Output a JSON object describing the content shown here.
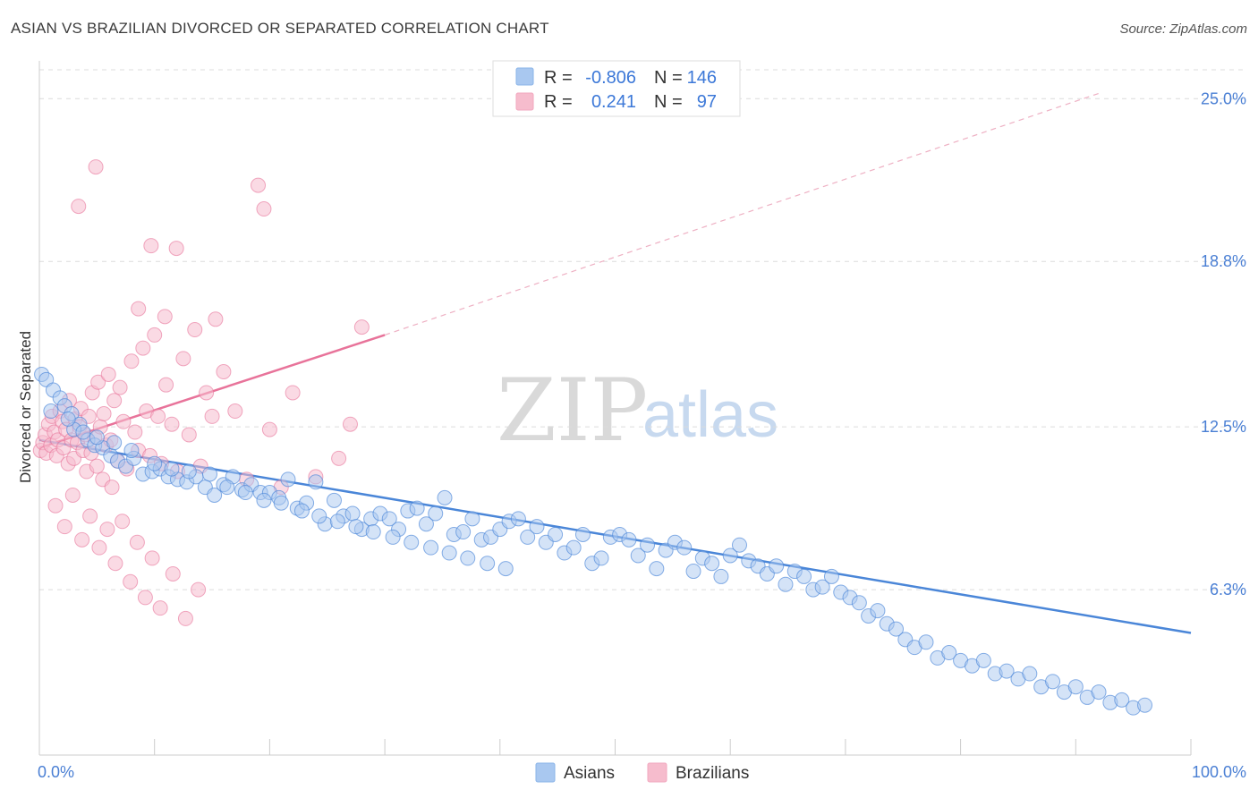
{
  "header": {
    "title": "ASIAN VS BRAZILIAN DIVORCED OR SEPARATED CORRELATION CHART",
    "source": "Source: ZipAtlas.com"
  },
  "watermark": {
    "zip": "ZIP",
    "atlas": "atlas"
  },
  "legend": {
    "rows": [
      {
        "r_label": "R =",
        "r_value": "-0.806",
        "n_label": "N =",
        "n_value": "146",
        "color": "#8ab4e8"
      },
      {
        "r_label": "R =",
        "r_value": "0.241",
        "n_label": "N =",
        "n_value": "97",
        "color": "#f2a7bf"
      }
    ]
  },
  "bottom_legend": {
    "asians": "Asians",
    "brazilians": "Brazilians"
  },
  "chart_data": {
    "type": "scatter",
    "title": "ASIAN VS BRAZILIAN DIVORCED OR SEPARATED CORRELATION CHART",
    "xlabel": "",
    "ylabel": "Divorced or Separated",
    "xlim": [
      0,
      100
    ],
    "ylim": [
      0,
      26.1
    ],
    "x_tick_labels": [
      "0.0%",
      "100.0%"
    ],
    "y_ticks": [
      6.3,
      12.5,
      18.8,
      25.0
    ],
    "y_tick_labels": [
      "6.3%",
      "12.5%",
      "18.8%",
      "25.0%"
    ],
    "grid": true,
    "legend_position": "top-center",
    "colors": {
      "asians": "#4a86d8",
      "brazilians": "#e8739a",
      "asians_fill": "#a9c8f0",
      "brazilians_fill": "#f6bccd"
    },
    "series": [
      {
        "name": "Asians",
        "r": -0.806,
        "n": 146,
        "trend": {
          "x": [
            0,
            100
          ],
          "y": [
            12.0,
            4.65
          ]
        },
        "points": [
          [
            0.2,
            14.5
          ],
          [
            0.6,
            14.3
          ],
          [
            1.2,
            13.9
          ],
          [
            1.8,
            13.6
          ],
          [
            2.2,
            13.3
          ],
          [
            2.8,
            13.0
          ],
          [
            3.5,
            12.6
          ],
          [
            3.0,
            12.4
          ],
          [
            4.2,
            12.0
          ],
          [
            4.8,
            11.8
          ],
          [
            5.5,
            11.7
          ],
          [
            6.2,
            11.4
          ],
          [
            6.8,
            11.2
          ],
          [
            7.5,
            11.0
          ],
          [
            8.2,
            11.3
          ],
          [
            9.0,
            10.7
          ],
          [
            9.8,
            10.8
          ],
          [
            10.5,
            10.9
          ],
          [
            11.2,
            10.6
          ],
          [
            12.0,
            10.5
          ],
          [
            12.8,
            10.4
          ],
          [
            13.6,
            10.6
          ],
          [
            14.4,
            10.2
          ],
          [
            15.2,
            9.9
          ],
          [
            16.0,
            10.3
          ],
          [
            16.8,
            10.6
          ],
          [
            17.6,
            10.1
          ],
          [
            18.4,
            10.3
          ],
          [
            19.2,
            10.0
          ],
          [
            20.0,
            10.0
          ],
          [
            20.8,
            9.8
          ],
          [
            21.6,
            10.5
          ],
          [
            22.4,
            9.4
          ],
          [
            23.2,
            9.6
          ],
          [
            24.0,
            10.4
          ],
          [
            24.8,
            8.8
          ],
          [
            25.6,
            9.7
          ],
          [
            26.4,
            9.1
          ],
          [
            27.2,
            9.2
          ],
          [
            28.0,
            8.6
          ],
          [
            28.8,
            9.0
          ],
          [
            29.6,
            9.2
          ],
          [
            30.4,
            9.0
          ],
          [
            31.2,
            8.6
          ],
          [
            32.0,
            9.3
          ],
          [
            32.8,
            9.4
          ],
          [
            33.6,
            8.8
          ],
          [
            34.4,
            9.2
          ],
          [
            35.2,
            9.8
          ],
          [
            36.0,
            8.4
          ],
          [
            36.8,
            8.5
          ],
          [
            37.6,
            9.0
          ],
          [
            38.4,
            8.2
          ],
          [
            39.2,
            8.3
          ],
          [
            40.0,
            8.6
          ],
          [
            40.8,
            8.9
          ],
          [
            41.6,
            9.0
          ],
          [
            42.4,
            8.3
          ],
          [
            43.2,
            8.7
          ],
          [
            44.0,
            8.1
          ],
          [
            44.8,
            8.4
          ],
          [
            45.6,
            7.7
          ],
          [
            46.4,
            7.9
          ],
          [
            47.2,
            8.4
          ],
          [
            48.0,
            7.3
          ],
          [
            48.8,
            7.5
          ],
          [
            49.6,
            8.3
          ],
          [
            50.4,
            8.4
          ],
          [
            51.2,
            8.2
          ],
          [
            52.0,
            7.6
          ],
          [
            52.8,
            8.0
          ],
          [
            53.6,
            7.1
          ],
          [
            54.4,
            7.8
          ],
          [
            55.2,
            8.1
          ],
          [
            56.0,
            7.9
          ],
          [
            56.8,
            7.0
          ],
          [
            57.6,
            7.5
          ],
          [
            58.4,
            7.3
          ],
          [
            59.2,
            6.8
          ],
          [
            60.0,
            7.6
          ],
          [
            60.8,
            8.0
          ],
          [
            61.6,
            7.4
          ],
          [
            62.4,
            7.2
          ],
          [
            63.2,
            6.9
          ],
          [
            64.0,
            7.2
          ],
          [
            64.8,
            6.5
          ],
          [
            65.6,
            7.0
          ],
          [
            66.4,
            6.8
          ],
          [
            67.2,
            6.3
          ],
          [
            68.0,
            6.4
          ],
          [
            68.8,
            6.8
          ],
          [
            69.6,
            6.2
          ],
          [
            70.4,
            6.0
          ],
          [
            71.2,
            5.8
          ],
          [
            72.0,
            5.3
          ],
          [
            72.8,
            5.5
          ],
          [
            73.6,
            5.0
          ],
          [
            74.4,
            4.8
          ],
          [
            75.2,
            4.4
          ],
          [
            76.0,
            4.1
          ],
          [
            77.0,
            4.3
          ],
          [
            78.0,
            3.7
          ],
          [
            79.0,
            3.9
          ],
          [
            80.0,
            3.6
          ],
          [
            81.0,
            3.4
          ],
          [
            82.0,
            3.6
          ],
          [
            83.0,
            3.1
          ],
          [
            84.0,
            3.2
          ],
          [
            85.0,
            2.9
          ],
          [
            86.0,
            3.1
          ],
          [
            87.0,
            2.6
          ],
          [
            88.0,
            2.8
          ],
          [
            89.0,
            2.4
          ],
          [
            90.0,
            2.6
          ],
          [
            91.0,
            2.2
          ],
          [
            92.0,
            2.4
          ],
          [
            93.0,
            2.0
          ],
          [
            94.0,
            2.1
          ],
          [
            95.0,
            1.8
          ],
          [
            96.0,
            1.9
          ],
          [
            1.0,
            13.1
          ],
          [
            2.5,
            12.8
          ],
          [
            3.8,
            12.3
          ],
          [
            5.0,
            12.1
          ],
          [
            6.5,
            11.9
          ],
          [
            8.0,
            11.6
          ],
          [
            10.0,
            11.1
          ],
          [
            11.5,
            10.9
          ],
          [
            13.0,
            10.8
          ],
          [
            14.8,
            10.7
          ],
          [
            16.3,
            10.2
          ],
          [
            17.9,
            10.0
          ],
          [
            19.5,
            9.7
          ],
          [
            21.0,
            9.6
          ],
          [
            22.8,
            9.3
          ],
          [
            24.3,
            9.1
          ],
          [
            25.9,
            8.9
          ],
          [
            27.5,
            8.7
          ],
          [
            29.0,
            8.5
          ],
          [
            30.7,
            8.3
          ],
          [
            32.3,
            8.1
          ],
          [
            34.0,
            7.9
          ],
          [
            35.6,
            7.7
          ],
          [
            37.2,
            7.5
          ],
          [
            38.9,
            7.3
          ],
          [
            40.5,
            7.1
          ]
        ]
      },
      {
        "name": "Brazilians",
        "r": 0.241,
        "n": 97,
        "trend": {
          "x": [
            0,
            30
          ],
          "y": [
            11.7,
            16.0
          ]
        },
        "trend_extension": {
          "x": [
            30,
            92
          ],
          "y": [
            16.0,
            25.2
          ]
        },
        "points": [
          [
            0.1,
            11.6
          ],
          [
            0.3,
            11.9
          ],
          [
            0.5,
            12.2
          ],
          [
            0.6,
            11.5
          ],
          [
            0.8,
            12.6
          ],
          [
            1.0,
            11.8
          ],
          [
            1.1,
            12.9
          ],
          [
            1.3,
            12.3
          ],
          [
            1.5,
            11.4
          ],
          [
            1.6,
            12.0
          ],
          [
            1.8,
            13.1
          ],
          [
            2.0,
            12.7
          ],
          [
            2.1,
            11.7
          ],
          [
            2.3,
            12.4
          ],
          [
            2.5,
            11.1
          ],
          [
            2.6,
            13.5
          ],
          [
            2.8,
            12.0
          ],
          [
            3.0,
            11.3
          ],
          [
            3.1,
            12.8
          ],
          [
            3.3,
            11.9
          ],
          [
            3.5,
            12.5
          ],
          [
            3.6,
            13.2
          ],
          [
            3.8,
            11.6
          ],
          [
            4.0,
            12.2
          ],
          [
            4.1,
            10.8
          ],
          [
            4.3,
            12.9
          ],
          [
            4.5,
            11.5
          ],
          [
            4.6,
            13.8
          ],
          [
            4.8,
            12.1
          ],
          [
            5.0,
            11.0
          ],
          [
            5.1,
            14.2
          ],
          [
            5.3,
            12.5
          ],
          [
            5.5,
            10.5
          ],
          [
            5.6,
            13.0
          ],
          [
            5.8,
            11.8
          ],
          [
            6.0,
            14.5
          ],
          [
            6.2,
            12.0
          ],
          [
            6.3,
            10.2
          ],
          [
            6.5,
            13.5
          ],
          [
            6.8,
            11.2
          ],
          [
            7.0,
            14.0
          ],
          [
            7.3,
            12.7
          ],
          [
            7.6,
            10.9
          ],
          [
            8.0,
            15.0
          ],
          [
            8.3,
            12.3
          ],
          [
            8.6,
            11.6
          ],
          [
            9.0,
            15.5
          ],
          [
            9.3,
            13.1
          ],
          [
            9.6,
            11.4
          ],
          [
            10.0,
            16.0
          ],
          [
            10.3,
            12.9
          ],
          [
            10.6,
            11.1
          ],
          [
            11.0,
            14.1
          ],
          [
            11.5,
            12.6
          ],
          [
            12.0,
            10.8
          ],
          [
            12.5,
            15.1
          ],
          [
            13.0,
            12.2
          ],
          [
            13.5,
            16.2
          ],
          [
            14.0,
            11.0
          ],
          [
            14.5,
            13.8
          ],
          [
            15.0,
            12.9
          ],
          [
            16.0,
            14.6
          ],
          [
            17.0,
            13.1
          ],
          [
            18.0,
            10.5
          ],
          [
            19.0,
            21.7
          ],
          [
            19.5,
            20.8
          ],
          [
            20.0,
            12.4
          ],
          [
            21.0,
            10.2
          ],
          [
            22.0,
            13.8
          ],
          [
            24.0,
            10.6
          ],
          [
            26.0,
            11.3
          ],
          [
            27.0,
            12.6
          ],
          [
            28.0,
            16.3
          ],
          [
            1.4,
            9.5
          ],
          [
            2.2,
            8.7
          ],
          [
            2.9,
            9.9
          ],
          [
            3.7,
            8.2
          ],
          [
            4.4,
            9.1
          ],
          [
            5.2,
            7.9
          ],
          [
            5.9,
            8.6
          ],
          [
            6.6,
            7.3
          ],
          [
            7.2,
            8.9
          ],
          [
            7.9,
            6.6
          ],
          [
            8.5,
            8.1
          ],
          [
            9.2,
            6.0
          ],
          [
            9.8,
            7.5
          ],
          [
            10.5,
            5.6
          ],
          [
            11.6,
            6.9
          ],
          [
            12.7,
            5.2
          ],
          [
            13.8,
            6.3
          ],
          [
            4.9,
            22.4
          ],
          [
            3.4,
            20.9
          ],
          [
            9.7,
            19.4
          ],
          [
            11.9,
            19.3
          ],
          [
            8.6,
            17.0
          ],
          [
            10.9,
            16.7
          ],
          [
            15.3,
            16.6
          ]
        ]
      }
    ]
  }
}
